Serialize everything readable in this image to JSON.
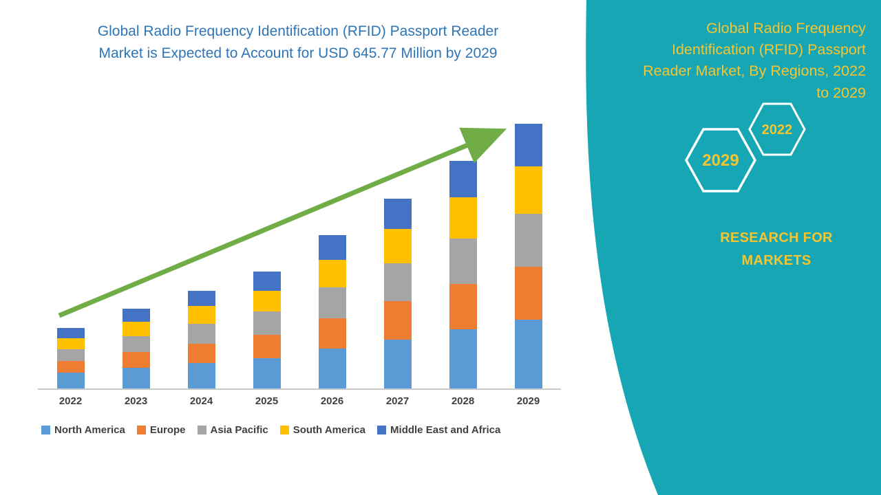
{
  "page": {
    "bg": "#ffffff",
    "teal": "#17A7B4",
    "gold": "#F5C531",
    "title_blue": "#2E75B6",
    "arrow_green": "#70AD47"
  },
  "chart_title": {
    "line1": "Global Radio Frequency Identification (RFID) Passport Reader",
    "line2": "Market is Expected to Account for USD 645.77 Million by 2029"
  },
  "side_panel": {
    "title_lines": {
      "l1": "Global Radio Frequency",
      "l2": "Identification (RFID) Passport",
      "l3": "Reader Market, By Regions, 2022",
      "l4": "to 2029"
    },
    "hexagon_front": "2029",
    "hexagon_back": "2022",
    "brand_line1": "RESEARCH FOR",
    "brand_line2": "MARKETS"
  },
  "chart_data": {
    "type": "bar",
    "stacked": true,
    "title": "Global Radio Frequency Identification (RFID) Passport Reader Market is Expected to Account for USD 645.77 Million by 2029",
    "categories": [
      "2022",
      "2023",
      "2024",
      "2025",
      "2026",
      "2027",
      "2028",
      "2029"
    ],
    "series": [
      {
        "name": "North America",
        "color": "#5B9BD5",
        "values": [
          38,
          50,
          62,
          74,
          97,
          120,
          144,
          168
        ]
      },
      {
        "name": "Europe",
        "color": "#ED7D31",
        "values": [
          29,
          39,
          48,
          57,
          75,
          93,
          111,
          129
        ]
      },
      {
        "name": "Asia Pacific",
        "color": "#A5A5A5",
        "values": [
          29,
          39,
          48,
          57,
          75,
          93,
          111,
          129
        ]
      },
      {
        "name": "South America",
        "color": "#FFC000",
        "values": [
          27,
          35,
          43,
          51,
          67,
          83,
          100,
          116
        ]
      },
      {
        "name": "Middle East and Africa",
        "color": "#4472C4",
        "values": [
          24,
          31,
          38,
          46,
          60,
          74,
          89,
          103.77
        ]
      }
    ],
    "totals": [
      147,
      194,
      239,
      285,
      374,
      463,
      555,
      645.77
    ],
    "unit": "USD Million",
    "ylim": [
      0,
      700
    ],
    "grid": false,
    "legend_position": "bottom",
    "annotations": [
      "upward trend arrow from 2022 to 2029"
    ]
  }
}
